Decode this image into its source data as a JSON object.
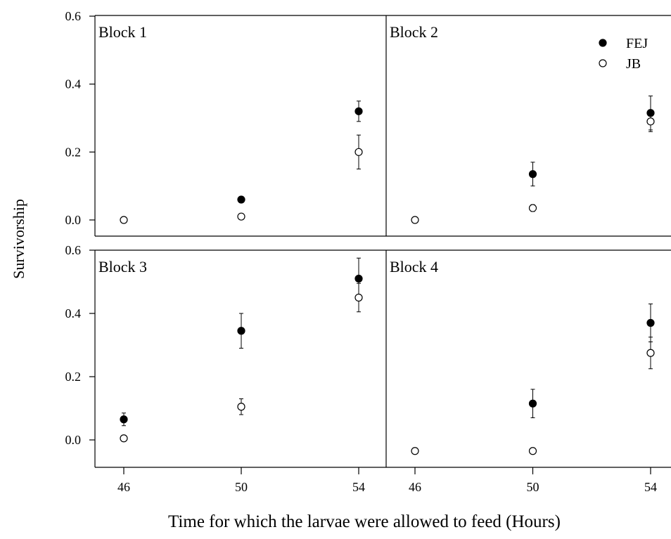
{
  "chart_data": {
    "type": "scatter",
    "xlabel": "Time for which the larvae were allowed to feed (Hours)",
    "ylabel": "Survivorship",
    "x_ticks": [
      46,
      50,
      54
    ],
    "y_ticks": [
      0.0,
      0.2,
      0.4,
      0.6
    ],
    "y_tick_labels": [
      "0.0",
      "0.2",
      "0.4",
      "0.6"
    ],
    "x_tick_labels": [
      "46",
      "50",
      "54"
    ],
    "ylim": [
      -0.05,
      0.6
    ],
    "legend": {
      "placement": "top-right of Block 2",
      "entries": [
        {
          "name": "FEJ",
          "marker": "filled-circle",
          "color": "#000000"
        },
        {
          "name": "JB",
          "marker": "open-circle",
          "color": "#000000"
        }
      ]
    },
    "panels": [
      {
        "title": "Block 1",
        "ylim": [
          -0.05,
          0.6
        ],
        "series": [
          {
            "name": "FEJ",
            "points": [
              {
                "x": 50,
                "y": 0.06,
                "err": 0
              },
              {
                "x": 54,
                "y": 0.32,
                "err": 0.03
              }
            ]
          },
          {
            "name": "JB",
            "points": [
              {
                "x": 46,
                "y": 0.0,
                "err": 0
              },
              {
                "x": 50,
                "y": 0.01,
                "err": 0
              },
              {
                "x": 54,
                "y": 0.2,
                "err": 0.05
              }
            ]
          }
        ]
      },
      {
        "title": "Block 2",
        "ylim": [
          -0.05,
          0.6
        ],
        "series": [
          {
            "name": "FEJ",
            "points": [
              {
                "x": 50,
                "y": 0.135,
                "err": 0.035
              },
              {
                "x": 54,
                "y": 0.315,
                "err": 0.05
              }
            ]
          },
          {
            "name": "JB",
            "points": [
              {
                "x": 46,
                "y": 0.0,
                "err": 0
              },
              {
                "x": 50,
                "y": 0.035,
                "err": 0.01
              },
              {
                "x": 54,
                "y": 0.29,
                "err": 0.03
              }
            ]
          }
        ]
      },
      {
        "title": "Block 3",
        "ylim": [
          -0.08,
          0.6
        ],
        "series": [
          {
            "name": "FEJ",
            "points": [
              {
                "x": 46,
                "y": 0.065,
                "err": 0.02
              },
              {
                "x": 50,
                "y": 0.345,
                "err": 0.055
              },
              {
                "x": 54,
                "y": 0.51,
                "err": 0.065
              }
            ]
          },
          {
            "name": "JB",
            "points": [
              {
                "x": 46,
                "y": 0.005,
                "err": 0
              },
              {
                "x": 50,
                "y": 0.105,
                "err": 0.025
              },
              {
                "x": 54,
                "y": 0.45,
                "err": 0.045
              }
            ]
          }
        ]
      },
      {
        "title": "Block 4",
        "ylim": [
          -0.08,
          0.6
        ],
        "series": [
          {
            "name": "FEJ",
            "points": [
              {
                "x": 50,
                "y": 0.115,
                "err": 0.045
              },
              {
                "x": 54,
                "y": 0.37,
                "err": 0.06
              }
            ]
          },
          {
            "name": "JB",
            "points": [
              {
                "x": 46,
                "y": -0.035,
                "err": 0
              },
              {
                "x": 50,
                "y": -0.035,
                "err": 0
              },
              {
                "x": 54,
                "y": 0.275,
                "err": 0.05
              }
            ]
          }
        ]
      }
    ]
  }
}
